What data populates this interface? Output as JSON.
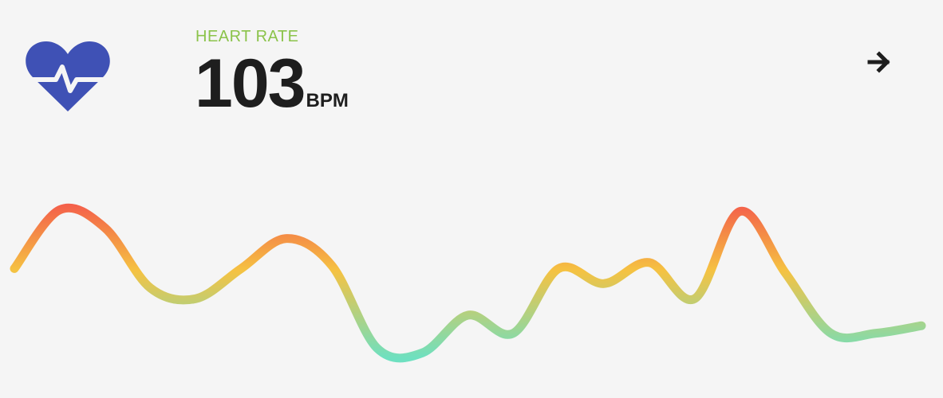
{
  "widget": {
    "title": "HEART RATE",
    "value": "103",
    "unit": "BPM"
  },
  "icons": {
    "heart": "heart-pulse-icon",
    "arrow": "arrow-right-icon"
  },
  "colors": {
    "icon": "#3f51b5",
    "title": "#8bc34a",
    "text": "#1e1e1e",
    "gradient_high": "#f4574b",
    "gradient_mid": "#f5c242",
    "gradient_low": "#6ee0c0"
  },
  "chart_data": {
    "type": "line",
    "series": [
      {
        "values": [
          0.58,
          0.97,
          0.85,
          0.45,
          0.38,
          0.58,
          0.78,
          0.6,
          0.05,
          0.02,
          0.27,
          0.15,
          0.58,
          0.48,
          0.62,
          0.38,
          0.96,
          0.55,
          0.15,
          0.15,
          0.2
        ]
      }
    ]
  }
}
